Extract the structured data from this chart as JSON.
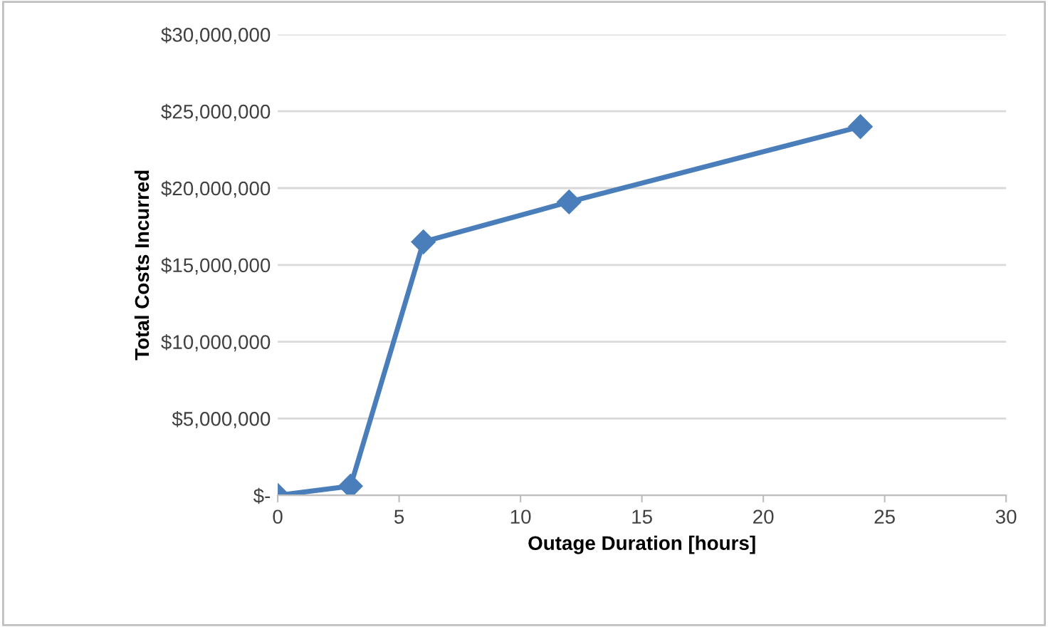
{
  "chart_data": {
    "type": "line",
    "xlabel": "Outage Duration [hours]",
    "ylabel": "Total Costs Incurred",
    "x": [
      0,
      3,
      6,
      12,
      24
    ],
    "series": [
      {
        "color": "#4a7ebb",
        "values": [
          0,
          600000,
          16500000,
          19100000,
          24000000
        ]
      }
    ],
    "xlim": [
      0,
      30
    ],
    "xticks": [
      0,
      5,
      10,
      15,
      20,
      25,
      30
    ],
    "ylim": [
      0,
      30000000
    ],
    "yticks": [
      {
        "value": 0,
        "label": "$-"
      },
      {
        "value": 5000000,
        "label": "$5,000,000"
      },
      {
        "value": 10000000,
        "label": "$10,000,000"
      },
      {
        "value": 15000000,
        "label": "$15,000,000"
      },
      {
        "value": 20000000,
        "label": "$20,000,000"
      },
      {
        "value": 25000000,
        "label": "$25,000,000"
      },
      {
        "value": 30000000,
        "label": "$30,000,000"
      }
    ],
    "grid": "y",
    "marker": "diamond",
    "line_style": "solid",
    "legend": false
  }
}
